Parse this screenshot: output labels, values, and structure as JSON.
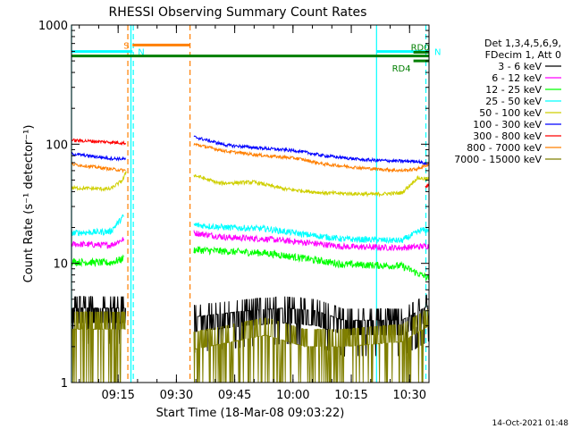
{
  "chart_data": {
    "type": "line",
    "title": "RHESSI Observing Summary Count Rates",
    "xlabel": "Start Time (18-Mar-08 09:03:22)",
    "ylabel": "Count Rate (s⁻¹ detector⁻¹)",
    "yscale": "log",
    "xlim_minutes": [
      0,
      92
    ],
    "ylim": [
      1,
      1000
    ],
    "x_ticks": [
      {
        "label": "09:15",
        "min": 12
      },
      {
        "label": "09:30",
        "min": 27
      },
      {
        "label": "09:45",
        "min": 42
      },
      {
        "label": "10:00",
        "min": 57
      },
      {
        "label": "10:15",
        "min": 72
      },
      {
        "label": "10:30",
        "min": 87
      }
    ],
    "y_ticks": [
      {
        "label": "1",
        "value": 1
      },
      {
        "label": "10",
        "value": 10
      },
      {
        "label": "100",
        "value": 100
      },
      {
        "label": "1000",
        "value": 1000
      }
    ],
    "legend": {
      "header": [
        "Det 1,3,4,5,6,9,",
        "FDecim 1, Att 0"
      ],
      "placement": "right"
    },
    "flags": [
      {
        "label": "S",
        "color": "#ff7f00",
        "y": 680,
        "x0": 15.7,
        "x1": 30.5
      },
      {
        "label": "N",
        "color": "#00ffff",
        "y": 600,
        "x0": 0,
        "x1": 15.7
      },
      {
        "label": "N",
        "color": "#00ffff",
        "y": 600,
        "x0": 78.5,
        "x1": 92
      },
      {
        "label": "",
        "color": "#007f00",
        "y": 550,
        "x0": 0,
        "x1": 92
      },
      {
        "label": "RD4",
        "color": "#007f00",
        "y": 500,
        "x0": 88,
        "x1": 92
      },
      {
        "label": "RD0",
        "color": "#007f00",
        "y": 590,
        "x0": 88,
        "x1": 92
      }
    ],
    "vlines": [
      {
        "x": 0,
        "color": "#00ffff",
        "style": "solid"
      },
      {
        "x": 15.3,
        "color": "#00ffff",
        "style": "solid"
      },
      {
        "x": 78.5,
        "color": "#00ffff",
        "style": "solid"
      },
      {
        "x": 15.9,
        "color": "#00ffff",
        "style": "dashed"
      },
      {
        "x": 91.2,
        "color": "#00ffff",
        "style": "dashed"
      },
      {
        "x": 14.5,
        "color": "#ff7f00",
        "style": "dashed"
      },
      {
        "x": 30.5,
        "color": "#ff7f00",
        "style": "dashed"
      }
    ],
    "gap_minutes": [
      14.6,
      31.5
    ],
    "series": [
      {
        "name": "3 - 6 keV",
        "color": "#000000",
        "noise": "step",
        "before": [
          [
            0,
            3.8
          ],
          [
            10,
            3.8
          ],
          [
            14,
            3.8
          ]
        ],
        "after": [
          [
            31.5,
            3.2
          ],
          [
            45,
            3.6
          ],
          [
            55,
            3.8
          ],
          [
            63,
            3.6
          ],
          [
            70,
            3.0
          ],
          [
            85,
            3.0
          ],
          [
            92,
            4.0
          ]
        ]
      },
      {
        "name": "6 - 12 keV",
        "color": "#ff00ff",
        "noise": 0.06,
        "before": [
          [
            0,
            14.5
          ],
          [
            10,
            14.2
          ],
          [
            13.5,
            16
          ]
        ],
        "after": [
          [
            31.5,
            18
          ],
          [
            40,
            16.5
          ],
          [
            50,
            16
          ],
          [
            60,
            15
          ],
          [
            70,
            13.8
          ],
          [
            85,
            13.5
          ],
          [
            92,
            14.0
          ]
        ]
      },
      {
        "name": "12 - 25 keV",
        "color": "#00ff00",
        "noise": 0.07,
        "before": [
          [
            0,
            10.3
          ],
          [
            10,
            10.1
          ],
          [
            13.5,
            11
          ]
        ],
        "after": [
          [
            31.5,
            13
          ],
          [
            42,
            12.5
          ],
          [
            50,
            12.2
          ],
          [
            60,
            11
          ],
          [
            70,
            9.8
          ],
          [
            85,
            9.5
          ],
          [
            90,
            8.0
          ],
          [
            92,
            7.5
          ]
        ]
      },
      {
        "name": "25 - 50 keV",
        "color": "#00ffff",
        "noise": 0.06,
        "before": [
          [
            0,
            18
          ],
          [
            10,
            18.5
          ],
          [
            13.5,
            25
          ]
        ],
        "after": [
          [
            31.5,
            21
          ],
          [
            40,
            20
          ],
          [
            50,
            19.5
          ],
          [
            60,
            17.5
          ],
          [
            70,
            16
          ],
          [
            85,
            15.5
          ],
          [
            90,
            19
          ],
          [
            92,
            19
          ]
        ]
      },
      {
        "name": "50 - 100 keV",
        "color": "#cfcf00",
        "noise": 0.035,
        "before": [
          [
            0,
            43
          ],
          [
            10,
            42
          ],
          [
            13.2,
            50
          ],
          [
            14.2,
            60
          ]
        ],
        "after": [
          [
            31.5,
            55
          ],
          [
            38,
            47
          ],
          [
            47,
            48
          ],
          [
            55,
            42
          ],
          [
            65,
            39
          ],
          [
            78,
            38
          ],
          [
            85,
            39
          ],
          [
            89,
            52
          ],
          [
            92,
            51
          ]
        ]
      },
      {
        "name": "100 - 300 keV",
        "color": "#0000ff",
        "noise": 0.03,
        "before": [
          [
            0,
            83
          ],
          [
            10,
            76
          ],
          [
            14,
            75
          ]
        ],
        "after": [
          [
            31.5,
            115
          ],
          [
            40,
            98
          ],
          [
            50,
            92
          ],
          [
            58,
            88
          ],
          [
            65,
            80
          ],
          [
            75,
            74
          ],
          [
            85,
            72
          ],
          [
            89,
            72
          ],
          [
            92,
            67
          ]
        ]
      },
      {
        "name": "300 - 800 keV",
        "color": "#ff0000",
        "noise": 0.03,
        "before": [
          [
            0,
            108
          ],
          [
            10,
            104
          ],
          [
            14,
            102
          ]
        ],
        "after": [
          [
            91,
            44
          ],
          [
            92,
            46
          ]
        ]
      },
      {
        "name": "800 - 7000 keV",
        "color": "#ff7f00",
        "noise": 0.03,
        "before": [
          [
            0,
            68
          ],
          [
            10,
            62
          ],
          [
            14,
            60
          ]
        ],
        "after": [
          [
            31.5,
            100
          ],
          [
            40,
            87
          ],
          [
            50,
            80
          ],
          [
            58,
            76
          ],
          [
            65,
            68
          ],
          [
            75,
            63
          ],
          [
            85,
            60
          ],
          [
            89,
            62
          ],
          [
            92,
            68
          ]
        ]
      },
      {
        "name": "7000 - 15000 keV",
        "color": "#7f7f00",
        "noise": "olive",
        "before": [
          [
            0,
            2.8
          ],
          [
            10,
            2.8
          ],
          [
            14,
            2.8
          ]
        ],
        "after": [
          [
            31.5,
            1.9
          ],
          [
            50,
            2.5
          ],
          [
            60,
            2.0
          ],
          [
            70,
            2.0
          ],
          [
            85,
            2.2
          ],
          [
            92,
            3.0
          ]
        ]
      }
    ]
  },
  "footer": {
    "timestamp": "14-Oct-2021 01:48"
  }
}
